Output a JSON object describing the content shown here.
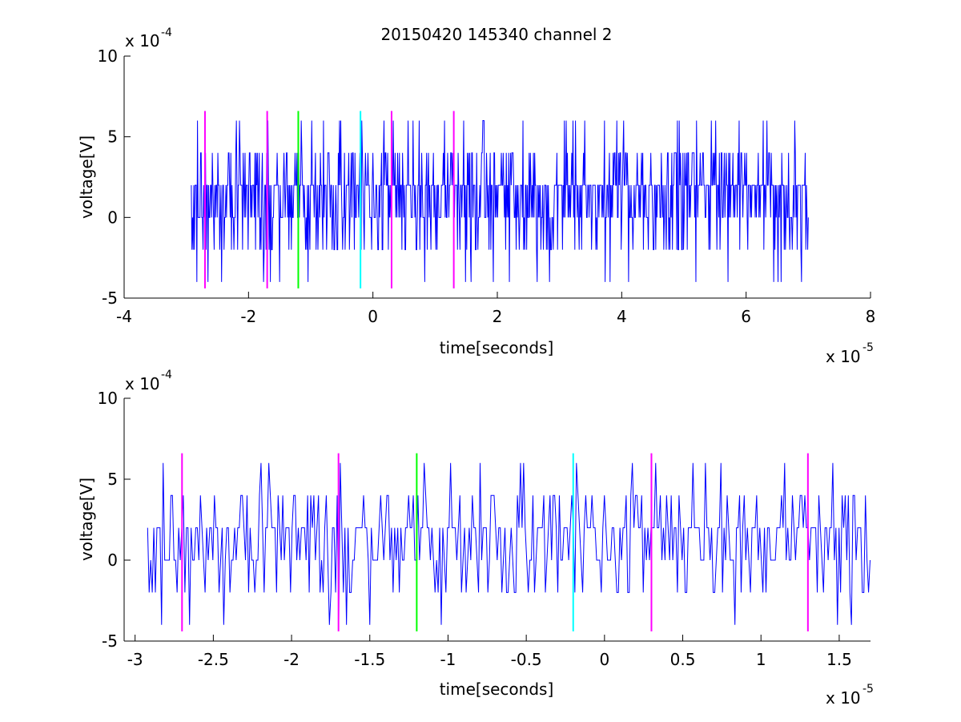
{
  "chart_data": [
    {
      "type": "line",
      "title": "20150420 145340 channel 2",
      "xlabel": "time[seconds]",
      "ylabel": "voltage[V]",
      "x_scale_label": "x 10",
      "x_scale_exp": "-5",
      "y_scale_label": "x 10",
      "y_scale_exp": "-4",
      "xlim": [
        -4,
        8
      ],
      "ylim": [
        -5,
        10
      ],
      "x_ticks": [
        "-4",
        "-2",
        "0",
        "2",
        "4",
        "6",
        "8"
      ],
      "x_tick_values": [
        -4,
        -2,
        0,
        2,
        4,
        6,
        8
      ],
      "y_ticks": [
        "-5",
        "0",
        "5",
        "10"
      ],
      "y_tick_values": [
        -5,
        0,
        5,
        10
      ],
      "grid": false,
      "series_color": "#0000ff",
      "signal_x_range": [
        -2.92,
        7.0
      ],
      "signal_seed": 7,
      "markers": [
        {
          "x": -2.7,
          "color": "#ff00ff"
        },
        {
          "x": -1.7,
          "color": "#ff00ff"
        },
        {
          "x": -1.2,
          "color": "#00ff00"
        },
        {
          "x": -0.2,
          "color": "#00ffff"
        },
        {
          "x": 0.3,
          "color": "#ff00ff"
        },
        {
          "x": 1.3,
          "color": "#ff00ff"
        }
      ],
      "marker_range": [
        -4.4,
        6.6
      ]
    },
    {
      "type": "line",
      "title": "",
      "xlabel": "time[seconds]",
      "ylabel": "voltage[V]",
      "x_scale_label": "x 10",
      "x_scale_exp": "-5",
      "y_scale_label": "x 10",
      "y_scale_exp": "-4",
      "xlim": [
        -3.07,
        1.7
      ],
      "ylim": [
        -5,
        10
      ],
      "x_ticks": [
        "-3",
        "-2.5",
        "-2",
        "-1.5",
        "-1",
        "-0.5",
        "0",
        "0.5",
        "1",
        "1.5"
      ],
      "x_tick_values": [
        -3,
        -2.5,
        -2,
        -1.5,
        -1,
        -0.5,
        0,
        0.5,
        1,
        1.5
      ],
      "y_ticks": [
        "-5",
        "0",
        "5",
        "10"
      ],
      "y_tick_values": [
        -5,
        0,
        5,
        10
      ],
      "grid": false,
      "series_color": "#0000ff",
      "signal_x_range": [
        -2.93,
        1.7
      ],
      "signal_seed": 7,
      "markers": [
        {
          "x": -2.7,
          "color": "#ff00ff"
        },
        {
          "x": -1.7,
          "color": "#ff00ff"
        },
        {
          "x": -1.2,
          "color": "#00ff00"
        },
        {
          "x": -0.2,
          "color": "#00ffff"
        },
        {
          "x": 0.3,
          "color": "#ff00ff"
        },
        {
          "x": 1.3,
          "color": "#ff00ff"
        }
      ],
      "marker_range": [
        -4.4,
        6.6
      ]
    }
  ]
}
